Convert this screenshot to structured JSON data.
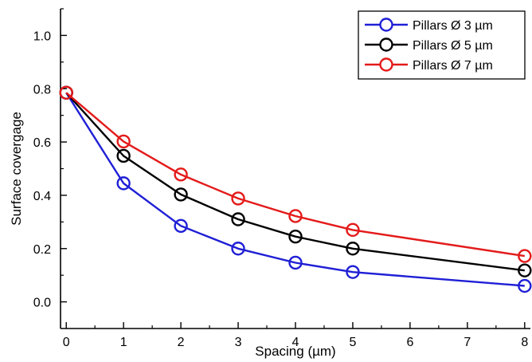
{
  "chart_data": {
    "type": "line",
    "title": "",
    "xlabel": "Spacing (µm)",
    "ylabel": "Surface covergage",
    "xlim": [
      -0.1,
      8.1
    ],
    "ylim": [
      -0.1,
      1.1
    ],
    "xticks": [
      "0",
      "1",
      "2",
      "3",
      "4",
      "5",
      "6",
      "7",
      "8"
    ],
    "yticks": [
      "0.0",
      "0.2",
      "0.4",
      "0.6",
      "0.8",
      "1.0"
    ],
    "x": [
      0,
      1,
      2,
      3,
      4,
      5,
      8
    ],
    "grid": false,
    "legend_position": "top-right",
    "marker": "open-circle",
    "series": [
      {
        "name": "Pillars Ø 3 µm",
        "color": "#1f1fd6",
        "values": [
          0.785,
          0.445,
          0.285,
          0.2,
          0.147,
          0.112,
          0.06
        ]
      },
      {
        "name": "Pillars Ø 5 µm",
        "color": "#000000",
        "values": [
          0.785,
          0.548,
          0.403,
          0.31,
          0.245,
          0.2,
          0.118
        ]
      },
      {
        "name": "Pillars Ø 7 µm",
        "color": "#e41a1a",
        "values": [
          0.785,
          0.602,
          0.478,
          0.388,
          0.322,
          0.27,
          0.172
        ]
      }
    ]
  }
}
